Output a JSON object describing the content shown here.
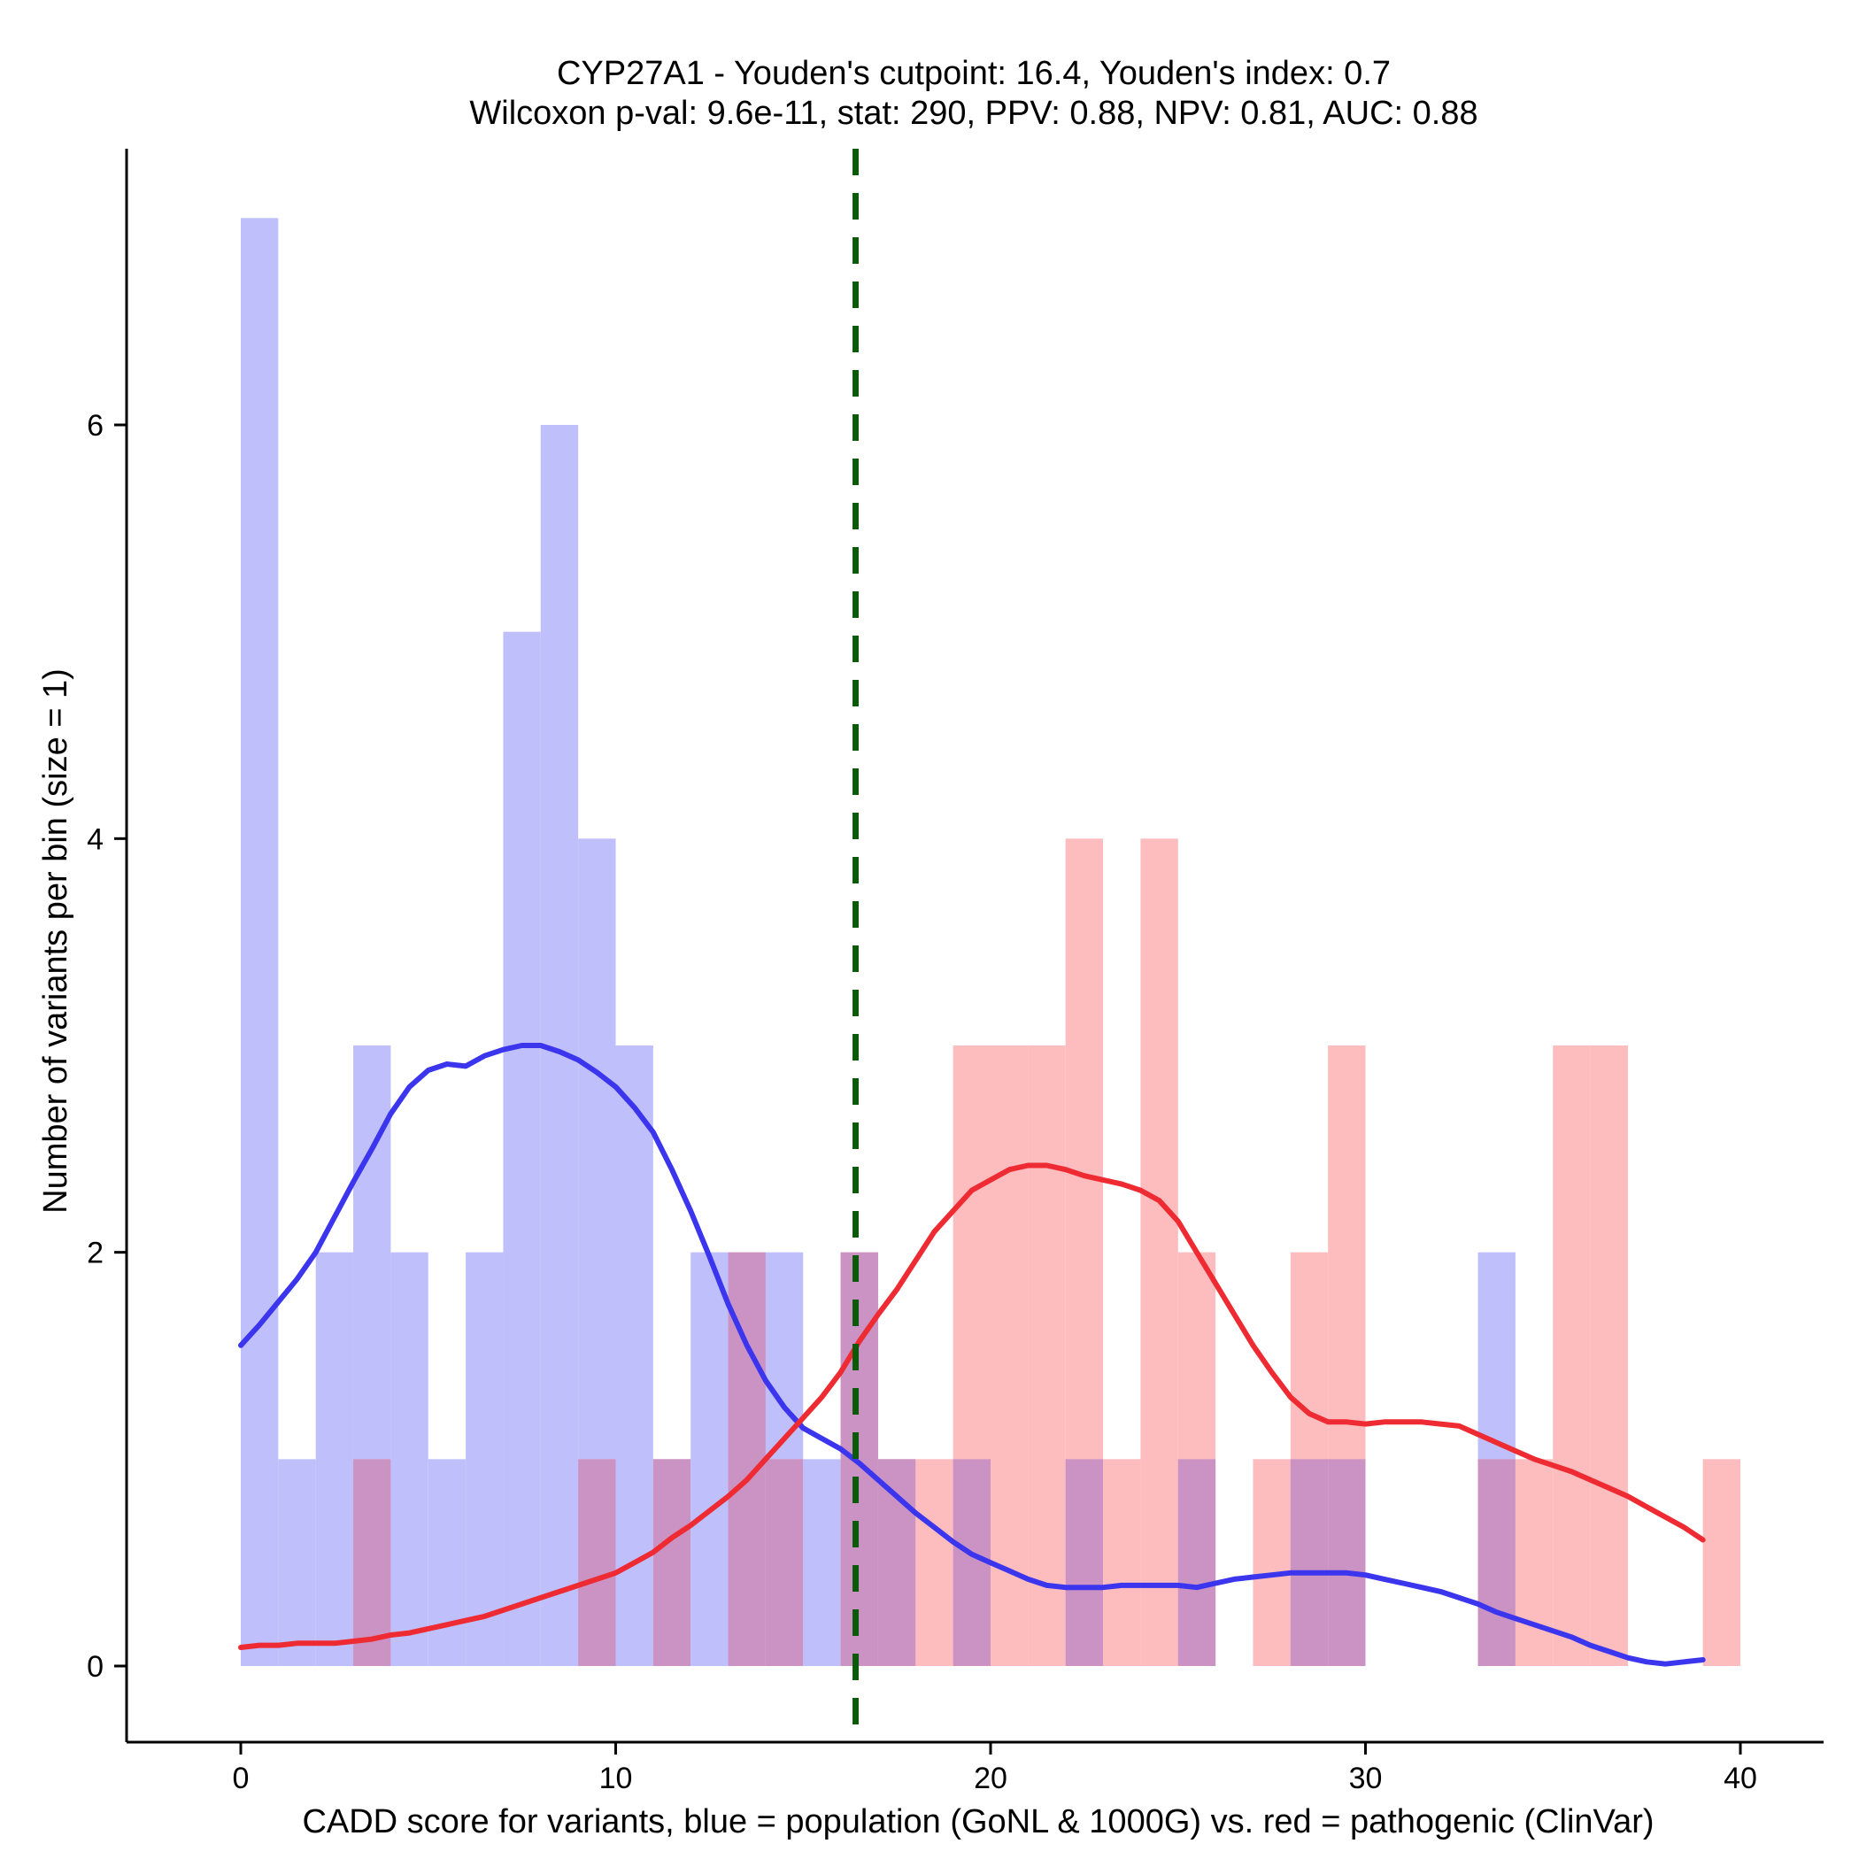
{
  "chart_data": {
    "type": "histogram",
    "title_line1": "CYP27A1 - Youden's cutpoint: 16.4, Youden's index: 0.7",
    "title_line2": "Wilcoxon p-val: 9.6e-11, stat: 290, PPV: 0.88, NPV: 0.81, AUC: 0.88",
    "xlabel": "CADD score for variants, blue = population (GoNL & 1000G) vs. red = pathogenic (ClinVar)",
    "ylabel": "Number of variants per bin (size = 1)",
    "xlim": [
      -3,
      42
    ],
    "ylim": [
      -0.35,
      7.4
    ],
    "xticks": [
      0,
      10,
      20,
      30,
      40
    ],
    "yticks": [
      0,
      2,
      4,
      6
    ],
    "bin_size": 1,
    "bin_starts": [
      0,
      1,
      2,
      3,
      4,
      5,
      6,
      7,
      8,
      9,
      10,
      11,
      12,
      13,
      14,
      15,
      16,
      17,
      18,
      19,
      20,
      21,
      22,
      23,
      24,
      25,
      26,
      27,
      28,
      29,
      30,
      31,
      32,
      33,
      34,
      35,
      36,
      37,
      38,
      39
    ],
    "series": [
      {
        "name": "population (GoNL & 1000G)",
        "color": "#0000ee",
        "fill_color": "#bfbffb",
        "counts": [
          7,
          1,
          2,
          3,
          2,
          1,
          2,
          5,
          6,
          4,
          3,
          1,
          2,
          2,
          2,
          1,
          2,
          1,
          0,
          1,
          0,
          0,
          1,
          0,
          0,
          1,
          0,
          0,
          1,
          1,
          0,
          0,
          0,
          2,
          0,
          0,
          0,
          0,
          0,
          0
        ]
      },
      {
        "name": "pathogenic (ClinVar)",
        "color": "#ee1c25",
        "fill_color": "#fdbcbe",
        "counts": [
          0,
          0,
          0,
          1,
          0,
          0,
          0,
          0,
          0,
          1,
          0,
          1,
          0,
          2,
          1,
          0,
          2,
          1,
          1,
          3,
          3,
          3,
          4,
          1,
          4,
          2,
          0,
          1,
          2,
          3,
          0,
          0,
          0,
          1,
          1,
          3,
          3,
          0,
          0,
          1
        ]
      }
    ],
    "overlap_color": "#cb93c4",
    "density_curves": [
      {
        "name": "population density",
        "color": "#3b35ee",
        "x": [
          0,
          0.5,
          1,
          1.5,
          2,
          2.5,
          3,
          3.5,
          4,
          4.5,
          5,
          5.5,
          6,
          6.5,
          7,
          7.5,
          8,
          8.5,
          9,
          9.5,
          10,
          10.5,
          11,
          11.5,
          12,
          12.5,
          13,
          13.5,
          14,
          14.5,
          15,
          15.5,
          16,
          16.5,
          17,
          17.5,
          18,
          18.5,
          19,
          19.5,
          20,
          20.5,
          21,
          21.5,
          22,
          22.5,
          23,
          23.5,
          24,
          24.5,
          25,
          25.5,
          26,
          26.5,
          27,
          27.5,
          28,
          28.5,
          29,
          29.5,
          30,
          30.5,
          31,
          31.5,
          32,
          32.5,
          33,
          33.5,
          34,
          34.5,
          35,
          35.5,
          36,
          36.5,
          37,
          37.5,
          38,
          38.5,
          39
        ],
        "y": [
          1.55,
          1.65,
          1.76,
          1.87,
          2.0,
          2.17,
          2.34,
          2.5,
          2.67,
          2.8,
          2.88,
          2.91,
          2.9,
          2.95,
          2.98,
          3.0,
          3.0,
          2.97,
          2.93,
          2.87,
          2.8,
          2.7,
          2.58,
          2.4,
          2.2,
          1.98,
          1.75,
          1.55,
          1.38,
          1.25,
          1.15,
          1.1,
          1.05,
          0.98,
          0.9,
          0.82,
          0.74,
          0.67,
          0.6,
          0.54,
          0.5,
          0.46,
          0.42,
          0.39,
          0.38,
          0.38,
          0.38,
          0.39,
          0.39,
          0.39,
          0.39,
          0.38,
          0.4,
          0.42,
          0.43,
          0.44,
          0.45,
          0.45,
          0.45,
          0.45,
          0.44,
          0.42,
          0.4,
          0.38,
          0.36,
          0.33,
          0.3,
          0.26,
          0.23,
          0.2,
          0.17,
          0.14,
          0.1,
          0.07,
          0.04,
          0.02,
          0.01,
          0.02,
          0.03
        ],
        "_note": "y values are in count units (density scaled to counts)"
      },
      {
        "name": "pathogenic density",
        "color": "#ee2b32",
        "x": [
          0,
          0.5,
          1,
          1.5,
          2,
          2.5,
          3,
          3.5,
          4,
          4.5,
          5,
          5.5,
          6,
          6.5,
          7,
          7.5,
          8,
          8.5,
          9,
          9.5,
          10,
          10.5,
          11,
          11.5,
          12,
          12.5,
          13,
          13.5,
          14,
          14.5,
          15,
          15.5,
          16,
          16.5,
          17,
          17.5,
          18,
          18.5,
          19,
          19.5,
          20,
          20.5,
          21,
          21.5,
          22,
          22.5,
          23,
          23.5,
          24,
          24.5,
          25,
          25.5,
          26,
          26.5,
          27,
          27.5,
          28,
          28.5,
          29,
          29.5,
          30,
          30.5,
          31,
          31.5,
          32,
          32.5,
          33,
          33.5,
          34,
          34.5,
          35,
          35.5,
          36,
          36.5,
          37,
          37.5,
          38,
          38.5,
          39
        ],
        "y": [
          0.09,
          0.1,
          0.1,
          0.11,
          0.11,
          0.11,
          0.12,
          0.13,
          0.15,
          0.16,
          0.18,
          0.2,
          0.22,
          0.24,
          0.27,
          0.3,
          0.33,
          0.36,
          0.39,
          0.42,
          0.45,
          0.5,
          0.55,
          0.62,
          0.68,
          0.75,
          0.82,
          0.9,
          1.0,
          1.1,
          1.2,
          1.3,
          1.42,
          1.57,
          1.7,
          1.82,
          1.96,
          2.1,
          2.2,
          2.3,
          2.35,
          2.4,
          2.42,
          2.42,
          2.4,
          2.37,
          2.35,
          2.33,
          2.3,
          2.25,
          2.15,
          2.0,
          1.85,
          1.7,
          1.55,
          1.42,
          1.3,
          1.22,
          1.18,
          1.18,
          1.17,
          1.18,
          1.18,
          1.18,
          1.17,
          1.16,
          1.12,
          1.08,
          1.04,
          1.0,
          0.97,
          0.94,
          0.9,
          0.86,
          0.82,
          0.77,
          0.72,
          0.67,
          0.61
        ],
        "_note": "y values are in count units (density scaled to counts)"
      }
    ],
    "cutpoint": {
      "x": 16.4,
      "color": "#0a5a0a",
      "style": "dashed"
    }
  }
}
